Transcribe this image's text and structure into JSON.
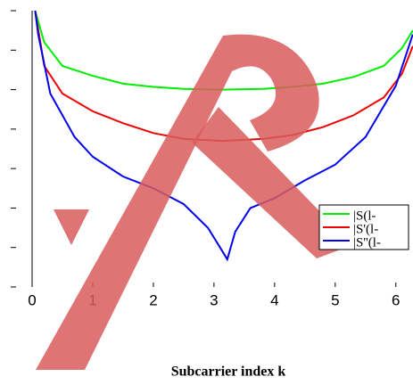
{
  "chart_data": {
    "type": "line",
    "x_label": "Subcarrier index k",
    "xlim": [
      0,
      6.283
    ],
    "xticks": [
      0,
      1,
      2,
      3,
      4,
      5,
      6
    ],
    "ylim": [
      -7,
      0
    ],
    "yticks": [
      -7,
      -6,
      -5,
      -4,
      -3,
      -2,
      -1,
      0
    ],
    "series": [
      {
        "name": "|S(l-",
        "color": "#00ee00",
        "x": [
          0.05,
          0.2,
          0.5,
          1,
          1.5,
          2,
          2.5,
          3.14,
          3.8,
          4.3,
          4.8,
          5.3,
          5.8,
          6.1,
          6.28
        ],
        "values": [
          0,
          -0.8,
          -1.4,
          -1.65,
          -1.85,
          -1.93,
          -1.98,
          -2.0,
          -1.98,
          -1.93,
          -1.85,
          -1.68,
          -1.4,
          -0.95,
          -0.5
        ]
      },
      {
        "name": "|S'(l-",
        "color": "#ee0000",
        "x": [
          0.05,
          0.2,
          0.5,
          1,
          1.5,
          2,
          2.5,
          3.14,
          3.8,
          4.3,
          4.8,
          5.3,
          5.8,
          6.1,
          6.28
        ],
        "values": [
          0,
          -1.4,
          -2.1,
          -2.55,
          -2.85,
          -3.1,
          -3.25,
          -3.3,
          -3.25,
          -3.15,
          -2.95,
          -2.65,
          -2.2,
          -1.6,
          -0.9
        ]
      },
      {
        "name": "|S''(l-",
        "color": "#0000ee",
        "x": [
          0.05,
          0.1,
          0.3,
          0.7,
          1,
          1.5,
          2,
          2.5,
          2.9,
          3.1,
          3.22,
          3.35,
          3.6,
          4,
          4.5,
          5,
          5.5,
          6,
          6.28
        ],
        "values": [
          0,
          -0.6,
          -2.1,
          -3.2,
          -3.7,
          -4.2,
          -4.5,
          -4.9,
          -5.5,
          -6.0,
          -6.3,
          -5.6,
          -5.0,
          -4.75,
          -4.3,
          -3.9,
          -3.2,
          -1.9,
          -0.6
        ]
      }
    ]
  }
}
